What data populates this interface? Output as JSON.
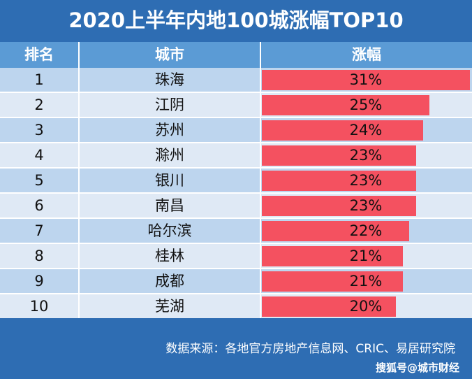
{
  "chart_data": {
    "type": "table",
    "title": "2020上半年内地100城涨幅TOP10",
    "columns": [
      "排名",
      "城市",
      "涨幅"
    ],
    "rows": [
      {
        "rank": "1",
        "city": "珠海",
        "value": 31,
        "label": "31%"
      },
      {
        "rank": "2",
        "city": "江阴",
        "value": 25,
        "label": "25%"
      },
      {
        "rank": "3",
        "city": "苏州",
        "value": 24,
        "label": "24%"
      },
      {
        "rank": "4",
        "city": "滁州",
        "value": 23,
        "label": "23%"
      },
      {
        "rank": "5",
        "city": "银川",
        "value": 23,
        "label": "23%"
      },
      {
        "rank": "6",
        "city": "南昌",
        "value": 23,
        "label": "23%"
      },
      {
        "rank": "7",
        "city": "哈尔滨",
        "value": 22,
        "label": "22%"
      },
      {
        "rank": "8",
        "city": "桂林",
        "value": 21,
        "label": "21%"
      },
      {
        "rank": "9",
        "city": "成都",
        "value": 21,
        "label": "21%"
      },
      {
        "rank": "10",
        "city": "芜湖",
        "value": 20,
        "label": "20%"
      }
    ],
    "value_max": 31,
    "bar_color": "#f45160"
  },
  "footer": {
    "source": "数据来源：各地官方房地产信息网、CRIC、易居研究院",
    "watermark": "搜狐号@城市财经"
  }
}
